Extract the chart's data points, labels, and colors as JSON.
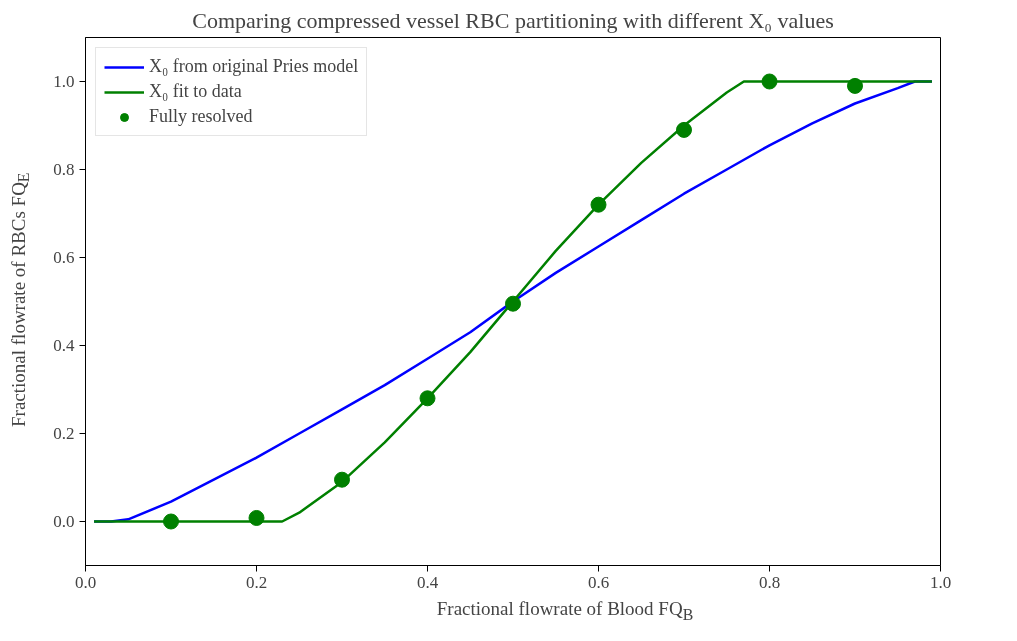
{
  "chart_data": {
    "type": "scatter",
    "title": "Comparing compressed vessel RBC partitioning with different X₀ values",
    "xlabel": "Fractional flowrate of Blood FQ$_{B}$",
    "ylabel": "Fractional flowrate of RBCs FQ$_{E}$",
    "xlim": [
      0.0,
      1.0
    ],
    "ylim": [
      -0.1,
      1.1
    ],
    "xticks": [
      {
        "value": 0,
        "label": "0.0"
      },
      0.2,
      0.4,
      0.6,
      0.8,
      {
        "value": 1,
        "label": "1.0"
      }
    ],
    "yticks": [
      {
        "value": 0,
        "label": "0.0"
      },
      0.2,
      0.4,
      0.6,
      0.8,
      {
        "value": 1,
        "label": "1.0"
      }
    ],
    "grid": false,
    "legend": "top left",
    "series": [
      {
        "name": "X₀ from original Pries model",
        "type": "line",
        "color": "#0000ff",
        "line_style": "solid",
        "marker": "none",
        "x": [
          0.01,
          0.03,
          0.05,
          0.1,
          0.15,
          0.2,
          0.25,
          0.3,
          0.35,
          0.4,
          0.45,
          0.5,
          0.55,
          0.6,
          0.65,
          0.7,
          0.75,
          0.8,
          0.85,
          0.9,
          0.95,
          0.97,
          0.99
        ],
        "values": [
          0,
          0,
          0.005,
          0.045,
          0.095,
          0.145,
          0.2,
          0.255,
          0.31,
          0.37,
          0.43,
          0.5,
          0.565,
          0.625,
          0.685,
          0.745,
          0.8,
          0.855,
          0.905,
          0.95,
          0.985,
          1.0,
          1.0
        ]
      },
      {
        "name": "X₀ fit to data",
        "type": "line",
        "color": "#008000",
        "line_style": "solid",
        "marker": "none",
        "x": [
          0.01,
          0.23,
          0.25,
          0.3,
          0.35,
          0.4,
          0.45,
          0.5,
          0.55,
          0.6,
          0.65,
          0.7,
          0.75,
          0.77,
          0.99
        ],
        "values": [
          0,
          0,
          0.02,
          0.09,
          0.18,
          0.28,
          0.385,
          0.5,
          0.615,
          0.72,
          0.815,
          0.9,
          0.975,
          1.0,
          1.0
        ]
      },
      {
        "name": "Fully resolved",
        "color": "#008000",
        "marker": "circle",
        "x": [
          0.1,
          0.2,
          0.3,
          0.4,
          0.5,
          0.6,
          0.7,
          0.8,
          0.9
        ],
        "values": [
          0.0,
          0.008,
          0.095,
          0.28,
          0.495,
          0.72,
          0.89,
          1.0,
          0.99
        ]
      }
    ]
  }
}
